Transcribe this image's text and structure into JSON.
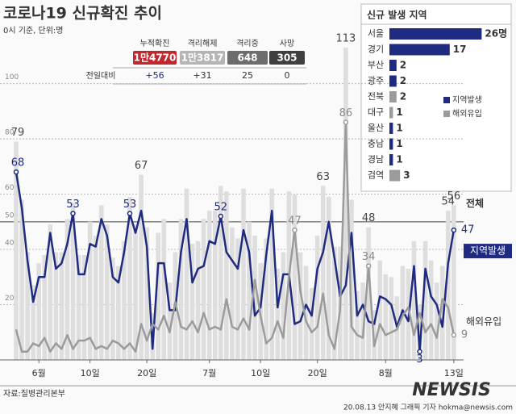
{
  "header": {
    "title": "코로나19 신규확진 추이",
    "subtitle": "0시 기준, 단위:명"
  },
  "summary": {
    "headers": [
      "누적확진",
      "격리해제",
      "격리중",
      "사망"
    ],
    "values": [
      "1만4770",
      "1만3817",
      "648",
      "305"
    ],
    "colors": [
      "#c1272d",
      "#b5b5b5",
      "#6d6d6d",
      "#3f3f3f"
    ],
    "change_label": "전일대비",
    "changes": [
      "+56",
      "+31",
      "25",
      "0"
    ]
  },
  "chart_data": [
    {
      "type": "combo",
      "categories": [
        null,
        null,
        null,
        null,
        "6월",
        null,
        null,
        null,
        null,
        null,
        null,
        null,
        null,
        "10일",
        null,
        null,
        null,
        null,
        null,
        null,
        null,
        null,
        null,
        "20일",
        null,
        null,
        null,
        null,
        null,
        null,
        null,
        null,
        null,
        null,
        "7월",
        null,
        null,
        null,
        null,
        null,
        null,
        null,
        null,
        "10일",
        null,
        null,
        null,
        null,
        null,
        null,
        null,
        null,
        null,
        "20일",
        null,
        null,
        null,
        null,
        null,
        null,
        null,
        null,
        null,
        null,
        null,
        "8월",
        null,
        null,
        null,
        null,
        null,
        null,
        null,
        null,
        null,
        null,
        null,
        "13일"
      ],
      "series": [
        {
          "name": "전체",
          "type": "bar",
          "color": "#dedede",
          "values": [
            79,
            58,
            39,
            27,
            35,
            38,
            49,
            39,
            39,
            51,
            57,
            38,
            38,
            50,
            45,
            56,
            49,
            37,
            34,
            43,
            59,
            49,
            67,
            48,
            17,
            46,
            51,
            28,
            39,
            51,
            62,
            42,
            43,
            51,
            54,
            54,
            63,
            61,
            48,
            44,
            62,
            50,
            45,
            35,
            44,
            62,
            33,
            39,
            61,
            60,
            39,
            34,
            26,
            45,
            63,
            59,
            41,
            41,
            113,
            58,
            25,
            28,
            48,
            18,
            36,
            31,
            30,
            23,
            34,
            33,
            43,
            20,
            43,
            36,
            28,
            34,
            54,
            56
          ]
        },
        {
          "name": "지역발생",
          "type": "line",
          "color": "#1e2b80",
          "values": [
            68,
            55,
            36,
            21,
            30,
            30,
            46,
            33,
            35,
            42,
            53,
            31,
            31,
            42,
            41,
            51,
            45,
            30,
            28,
            39,
            53,
            46,
            54,
            41,
            4,
            35,
            35,
            18,
            18,
            39,
            51,
            28,
            33,
            34,
            43,
            42,
            52,
            39,
            36,
            33,
            47,
            39,
            16,
            19,
            38,
            54,
            19,
            31,
            31,
            13,
            14,
            20,
            16,
            33,
            39,
            50,
            37,
            23,
            27,
            46,
            16,
            20,
            14,
            13,
            23,
            22,
            20,
            12,
            18,
            14,
            34,
            3,
            33,
            23,
            20,
            12,
            35,
            47
          ]
        },
        {
          "name": "해외유입",
          "type": "line",
          "color": "#9b9b9b",
          "values": [
            11,
            3,
            3,
            6,
            5,
            8,
            3,
            6,
            4,
            9,
            4,
            7,
            7,
            8,
            4,
            5,
            4,
            7,
            6,
            4,
            6,
            3,
            13,
            7,
            13,
            11,
            16,
            10,
            21,
            12,
            11,
            14,
            10,
            17,
            11,
            12,
            11,
            22,
            12,
            11,
            15,
            11,
            29,
            16,
            6,
            8,
            14,
            8,
            30,
            47,
            25,
            14,
            10,
            12,
            24,
            9,
            4,
            18,
            86,
            12,
            9,
            8,
            34,
            5,
            13,
            9,
            10,
            11,
            16,
            19,
            9,
            17,
            10,
            13,
            8,
            22,
            19,
            9
          ]
        }
      ],
      "ylim": [
        0,
        118
      ],
      "yticks": [
        20,
        40,
        50,
        60,
        80,
        100
      ],
      "grid": true
    },
    {
      "type": "hbar",
      "title": "신규 발생 지역",
      "categories": [
        "서울",
        "경기",
        "부산",
        "광주",
        "전북",
        "대구",
        "울산",
        "충남",
        "경남",
        "검역"
      ],
      "values": [
        26,
        17,
        2,
        2,
        2,
        1,
        1,
        1,
        1,
        3
      ],
      "value_labels": [
        "26명",
        "17",
        "2",
        "2",
        "2",
        "1",
        "1",
        "1",
        "1",
        "3"
      ],
      "colors": [
        "#1e2b80",
        "#1e2b80",
        "#1e2b80",
        "#1e2b80",
        "#9b9b9b",
        "#9b9b9b",
        "#1e2b80",
        "#1e2b80",
        "#1e2b80",
        "#9b9b9b"
      ],
      "legend": [
        {
          "name": "지역발생",
          "color": "#1e2b80"
        },
        {
          "name": "해외유입",
          "color": "#9b9b9b"
        }
      ]
    }
  ],
  "footer": {
    "source": "자료:질병관리본부",
    "credit": "20.08.13 안지혜 그래픽 기자 hokma@newsis.com",
    "watermark": "NEWSIS"
  }
}
